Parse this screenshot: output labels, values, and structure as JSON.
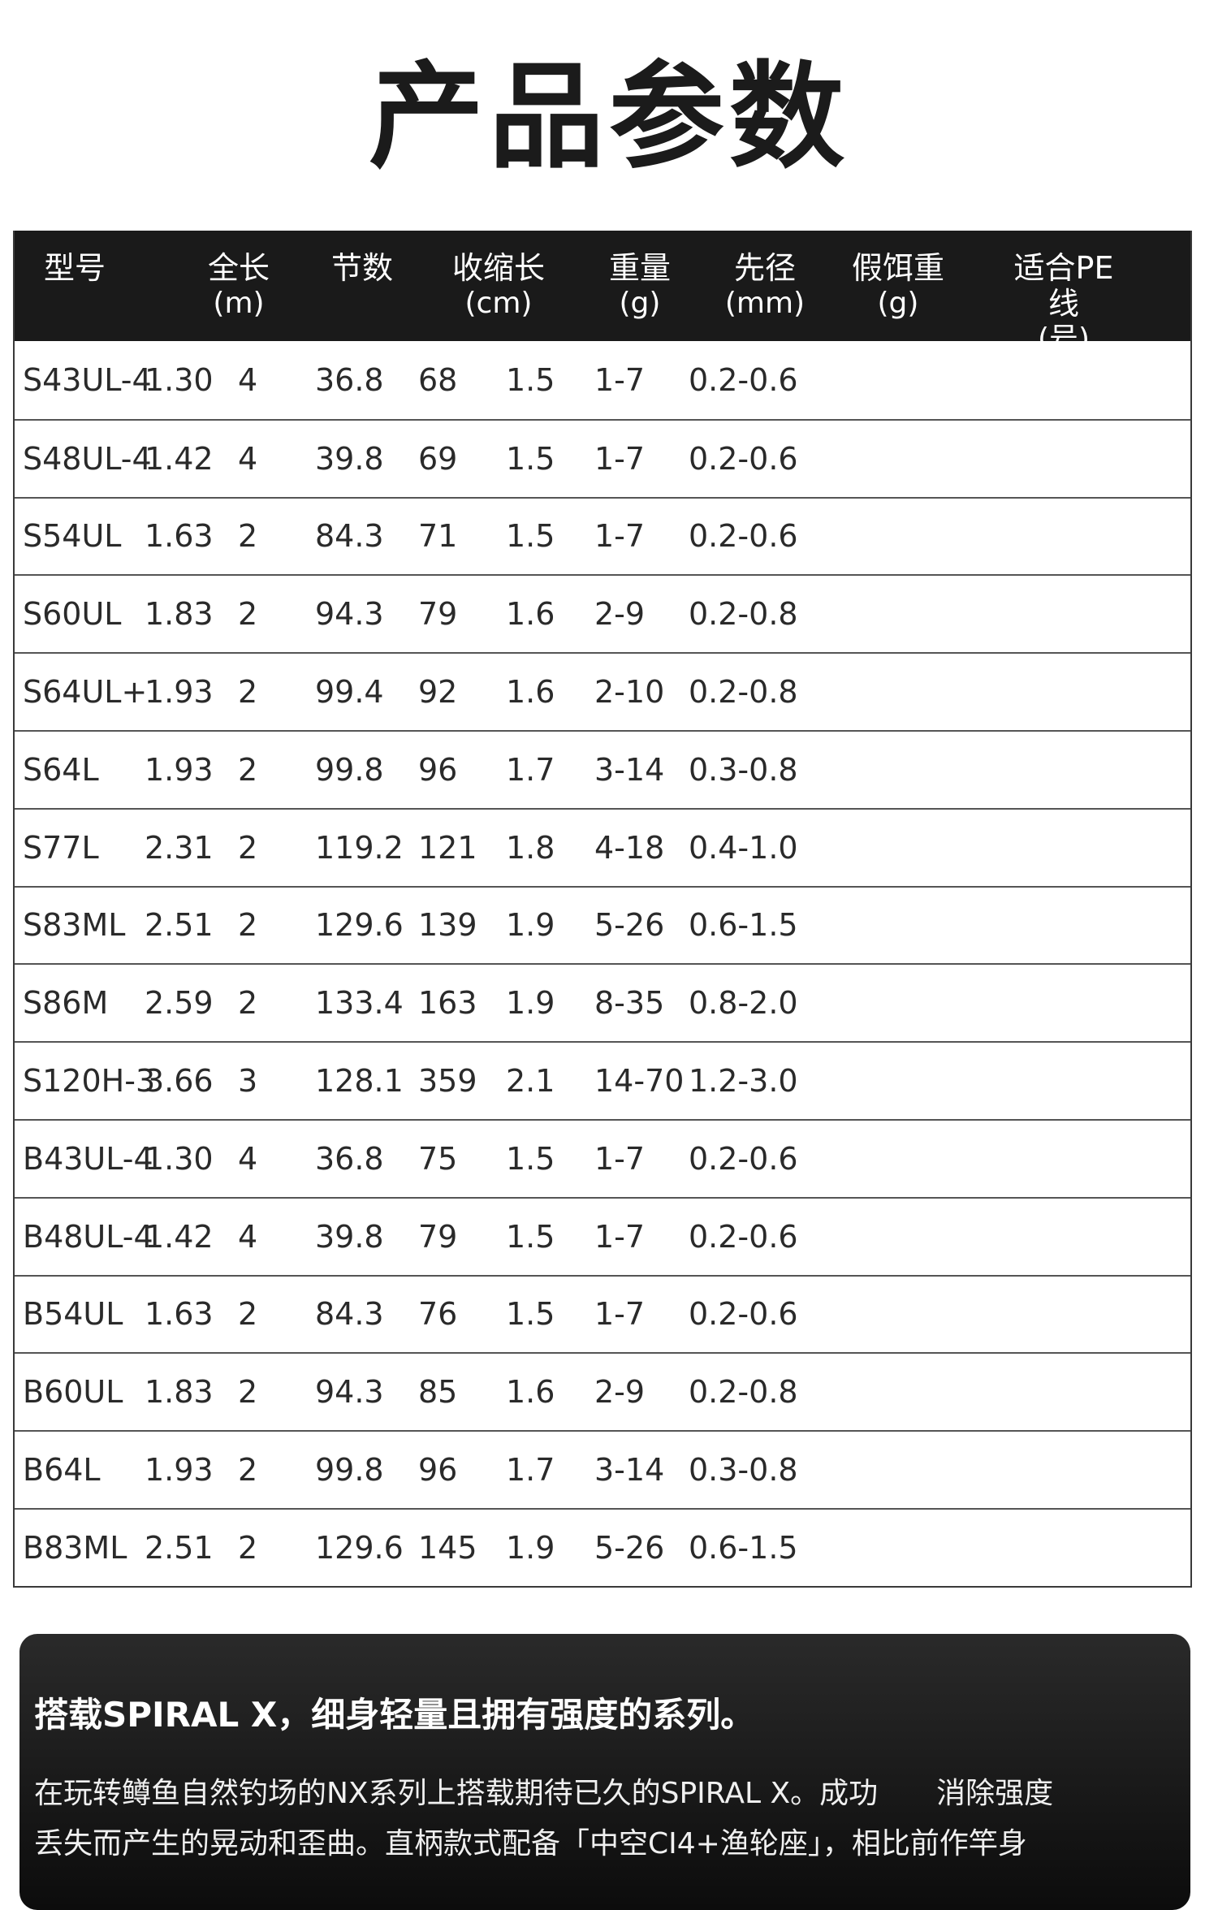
{
  "title": "产品参数",
  "table": {
    "headers": [
      {
        "line1": "型号",
        "line2": ""
      },
      {
        "line1": "全长",
        "line2": "(m)"
      },
      {
        "line1": "节数",
        "line2": ""
      },
      {
        "line1": "收缩长",
        "line2": "(cm)"
      },
      {
        "line1": "重量",
        "line2": "(g)"
      },
      {
        "line1": "先径",
        "line2": "(mm)"
      },
      {
        "line1": "假饵重",
        "line2": "(g)"
      },
      {
        "line1": "适合PE线",
        "line2": "(号)"
      }
    ],
    "rows": [
      [
        "S43UL-4",
        "1.30",
        "4",
        "36.8",
        "68",
        "1.5",
        "1-7",
        "0.2-0.6"
      ],
      [
        "S48UL-4",
        "1.42",
        "4",
        "39.8",
        "69",
        "1.5",
        "1-7",
        "0.2-0.6"
      ],
      [
        "S54UL",
        "1.63",
        "2",
        "84.3",
        "71",
        "1.5",
        "1-7",
        "0.2-0.6"
      ],
      [
        "S60UL",
        "1.83",
        "2",
        "94.3",
        "79",
        "1.6",
        "2-9",
        "0.2-0.8"
      ],
      [
        "S64UL+",
        "1.93",
        "2",
        "99.4",
        "92",
        "1.6",
        "2-10",
        "0.2-0.8"
      ],
      [
        "S64L",
        "1.93",
        "2",
        "99.8",
        "96",
        "1.7",
        "3-14",
        "0.3-0.8"
      ],
      [
        "S77L",
        "2.31",
        "2",
        "119.2",
        "121",
        "1.8",
        "4-18",
        "0.4-1.0"
      ],
      [
        "S83ML",
        "2.51",
        "2",
        "129.6",
        "139",
        "1.9",
        "5-26",
        "0.6-1.5"
      ],
      [
        "S86M",
        "2.59",
        "2",
        "133.4",
        "163",
        "1.9",
        "8-35",
        "0.8-2.0"
      ],
      [
        "S120H-3",
        "3.66",
        "3",
        "128.1",
        "359",
        "2.1",
        "14-70",
        "1.2-3.0"
      ],
      [
        "B43UL-4",
        "1.30",
        "4",
        "36.8",
        "75",
        "1.5",
        "1-7",
        "0.2-0.6"
      ],
      [
        "B48UL-4",
        "1.42",
        "4",
        "39.8",
        "79",
        "1.5",
        "1-7",
        "0.2-0.6"
      ],
      [
        "B54UL",
        "1.63",
        "2",
        "84.3",
        "76",
        "1.5",
        "1-7",
        "0.2-0.6"
      ],
      [
        "B60UL",
        "1.83",
        "2",
        "94.3",
        "85",
        "1.6",
        "2-9",
        "0.2-0.8"
      ],
      [
        "B64L",
        "1.93",
        "2",
        "99.8",
        "96",
        "1.7",
        "3-14",
        "0.3-0.8"
      ],
      [
        "B83ML",
        "2.51",
        "2",
        "129.6",
        "145",
        "1.9",
        "5-26",
        "0.6-1.5"
      ]
    ]
  },
  "panel": {
    "heading": "搭载SPIRAL X，细身轻量且拥有强度的系列。",
    "line1": "在玩转鳟鱼自然钓场的NX系列上搭载期待已久的SPIRAL X。成功　　消除强度",
    "line2": "丢失而产生的晃动和歪曲。直柄款式配备「中空CI4+渔轮座」，相比前作竿身"
  },
  "colors": {
    "header_bg": "#1a1a1a",
    "header_text": "#ffffff",
    "row_border": "#555555",
    "panel_bg": "#1c1c1c"
  }
}
